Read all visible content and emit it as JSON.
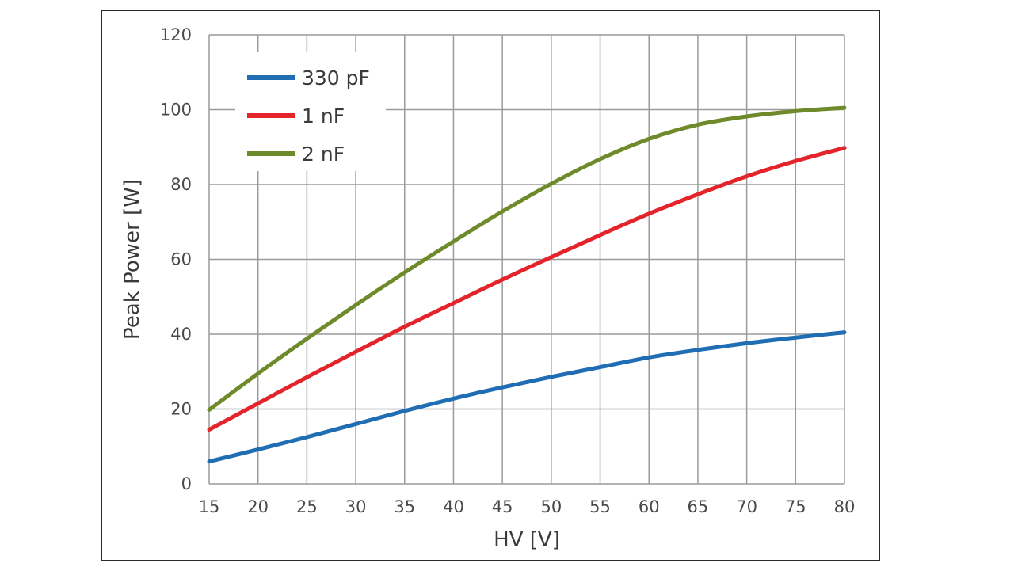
{
  "chart_data": {
    "type": "line",
    "title": "",
    "xlabel": "HV [V]",
    "ylabel": "Peak Power [W]",
    "xlim": [
      15,
      80
    ],
    "ylim": [
      0,
      120
    ],
    "x_ticks": [
      15,
      20,
      25,
      30,
      35,
      40,
      45,
      50,
      55,
      60,
      65,
      70,
      75,
      80
    ],
    "y_ticks": [
      0,
      20,
      40,
      60,
      80,
      100,
      120
    ],
    "grid": true,
    "legend_position": "top-left",
    "x": [
      15,
      20,
      25,
      30,
      35,
      40,
      45,
      50,
      55,
      60,
      65,
      70,
      75,
      80
    ],
    "series": [
      {
        "name": "330 pF",
        "color": "#1f6db3",
        "values": [
          6,
          9.2,
          12.5,
          16,
          19.5,
          22.8,
          25.8,
          28.6,
          31.2,
          33.8,
          35.8,
          37.6,
          39.1,
          40.5
        ]
      },
      {
        "name": "1 nF",
        "color": "#e3242b",
        "values": [
          14.5,
          21.5,
          28.5,
          35.3,
          42,
          48.3,
          54.6,
          60.6,
          66.5,
          72.2,
          77.4,
          82.2,
          86.3,
          89.8
        ]
      },
      {
        "name": "2 nF",
        "color": "#6f8a2a",
        "values": [
          19.8,
          29.5,
          38.8,
          47.8,
          56.5,
          64.8,
          72.8,
          80.2,
          86.8,
          92.2,
          96,
          98.2,
          99.6,
          100.5
        ]
      }
    ]
  }
}
